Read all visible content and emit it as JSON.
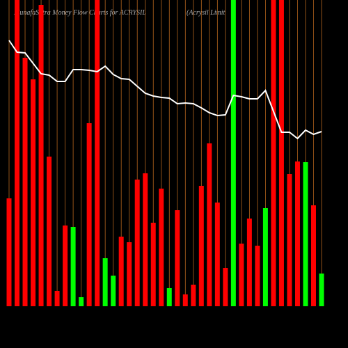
{
  "chart_data": {
    "type": "bar",
    "title": "MunafaSutra  Money Flow  Charts for ACRYSIL",
    "subtitle": "(Acrysil Limit",
    "background": "#000000",
    "grid": true,
    "grid_color": "#b5651d",
    "ylim": [
      0,
      440
    ],
    "series": [
      {
        "type": "bar",
        "colors": [
          "#ff0000",
          "#ff0000",
          "#ff0000",
          "#ff0000",
          "#ff0000",
          "#ff0000",
          "#ff0000",
          "#ff0000",
          "#00ff00",
          "#00ff00",
          "#ff0000",
          "#ff0000",
          "#00ff00",
          "#00ff00",
          "#ff0000",
          "#ff0000",
          "#ff0000",
          "#ff0000",
          "#ff0000",
          "#ff0000",
          "#00ff00",
          "#ff0000",
          "#ff0000",
          "#ff0000",
          "#ff0000",
          "#ff0000",
          "#ff0000",
          "#ff0000",
          "#00ff00",
          "#ff0000",
          "#ff0000",
          "#ff0000",
          "#00ff00",
          "#ff0000",
          "#ff0000",
          "#ff0000",
          "#ff0000",
          "#00ff00",
          "#ff0000",
          "#00ff00"
        ],
        "values": [
          155,
          440,
          357,
          326,
          433,
          215,
          22,
          116,
          114,
          13,
          263,
          440,
          69,
          44,
          100,
          92,
          182,
          191,
          120,
          169,
          26,
          138,
          17,
          31,
          173,
          234,
          149,
          55,
          440,
          90,
          126,
          87,
          141,
          440,
          440,
          190,
          208,
          207,
          145,
          47
        ]
      },
      {
        "type": "line",
        "color": "#ffffff",
        "values": [
          382,
          365,
          364,
          349,
          334,
          332,
          323,
          323,
          340,
          340,
          339,
          337,
          345,
          333,
          327,
          326,
          316,
          306,
          302,
          300,
          299,
          291,
          292,
          291,
          285,
          278,
          274,
          275,
          303,
          301,
          298,
          298,
          310,
          280,
          250,
          250,
          241,
          253,
          247,
          251
        ]
      }
    ]
  }
}
